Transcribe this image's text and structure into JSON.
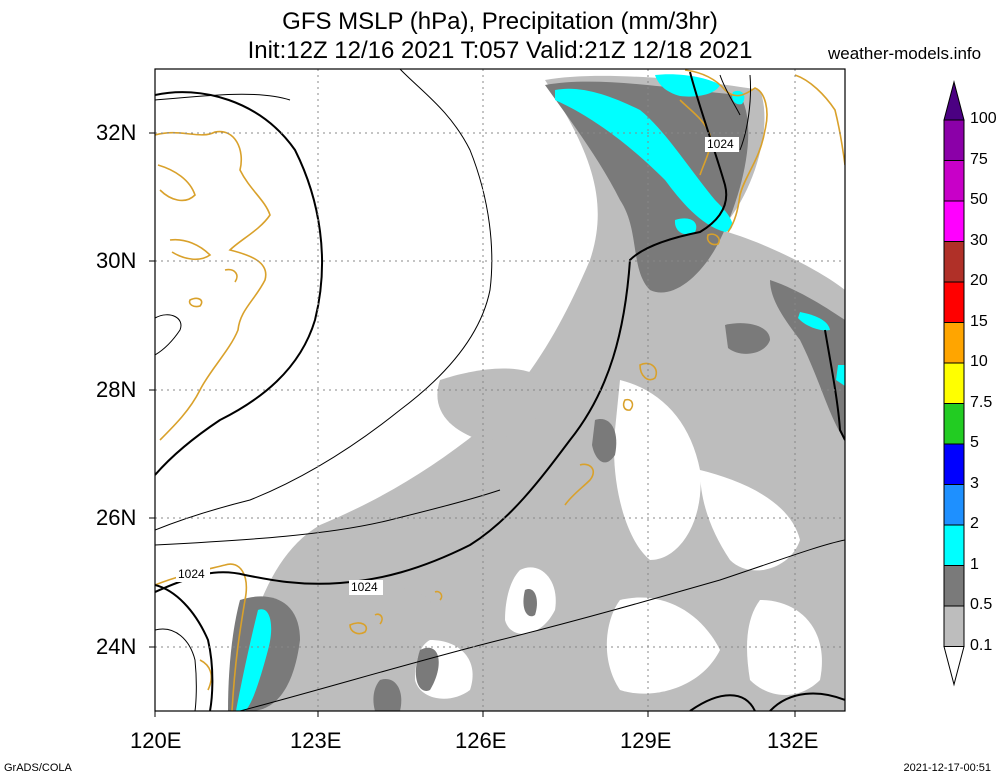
{
  "header": {
    "title_line1": "GFS MSLP (hPa), Precipitation (mm/3hr)",
    "title_line2": "Init:12Z 12/16 2021 T:057 Valid:21Z 12/18 2021",
    "site": "weather-models.info"
  },
  "footer": {
    "left": "GrADS/COLA",
    "right": "2021-12-17-00:51"
  },
  "map": {
    "lon_labels": [
      "120E",
      "123E",
      "126E",
      "129E",
      "132E"
    ],
    "lat_labels": [
      "32N",
      "30N",
      "28N",
      "26N",
      "24N"
    ],
    "contour_labels": [
      "1024",
      "1024",
      "1024"
    ],
    "colors": {
      "coast": "#d9a12b",
      "precip_0_1": "#bdbdbd",
      "precip_0_5": "#7a7a7a",
      "precip_1": "#00ffff"
    }
  },
  "colorbar": {
    "labels": [
      "100",
      "75",
      "50",
      "30",
      "20",
      "15",
      "10",
      "7.5",
      "5",
      "3",
      "2",
      "1",
      "0.5",
      "0.1"
    ],
    "colors": [
      "#4b0082",
      "#8b00a8",
      "#c800c8",
      "#ff00ff",
      "#b03028",
      "#ff0000",
      "#ffa500",
      "#ffff00",
      "#22cc22",
      "#0000ff",
      "#1e90ff",
      "#00ffff",
      "#7a7a7a",
      "#bdbdbd",
      "#ffffff"
    ]
  }
}
